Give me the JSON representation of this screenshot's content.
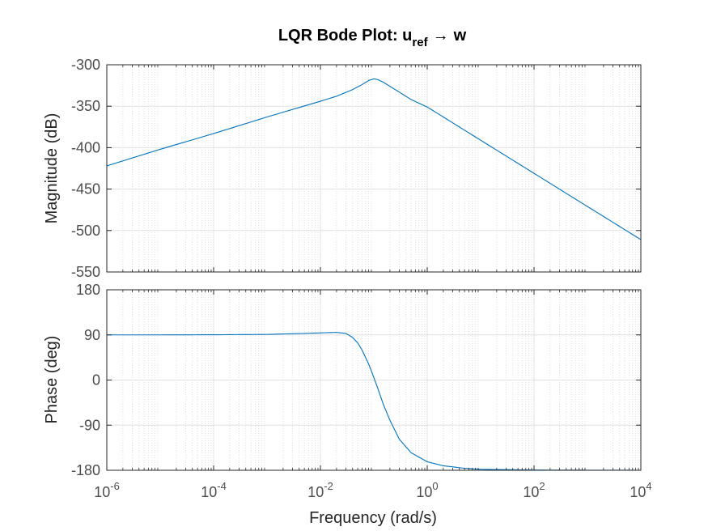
{
  "chart_data": {
    "type": "line",
    "title": {
      "prefix": "LQR Bode Plot: u",
      "subscript": "ref",
      "arrow": "→",
      "suffix": "w"
    },
    "xlabel": "Frequency  (rad/s)",
    "xscale": "log",
    "xlim": [
      1e-06,
      10000
    ],
    "xticks": [
      {
        "value": 1e-06,
        "base": "10",
        "exp": "-6"
      },
      {
        "value": 0.0001,
        "base": "10",
        "exp": "-4"
      },
      {
        "value": 0.01,
        "base": "10",
        "exp": "-2"
      },
      {
        "value": 1,
        "base": "10",
        "exp": "0"
      },
      {
        "value": 100,
        "base": "10",
        "exp": "2"
      },
      {
        "value": 10000,
        "base": "10",
        "exp": "4"
      }
    ],
    "grid": "major and minor",
    "line_color": "#0072bd",
    "panels": [
      {
        "id": "magnitude",
        "ylabel": "Magnitude (dB)",
        "ylim": [
          -550,
          -300
        ],
        "yticks": [
          {
            "value": -300,
            "label": "-300"
          },
          {
            "value": -350,
            "label": "-350"
          },
          {
            "value": -400,
            "label": "-400"
          },
          {
            "value": -450,
            "label": "-450"
          },
          {
            "value": -500,
            "label": "-500"
          },
          {
            "value": -550,
            "label": "-550"
          }
        ],
        "series": [
          {
            "x": [
              1e-06,
              1e-05,
              0.0001,
              0.001,
              0.01,
              0.02,
              0.04,
              0.06,
              0.08,
              0.1,
              0.12,
              0.15,
              0.2,
              0.3,
              0.5,
              1,
              10,
              100,
              1000,
              10000
            ],
            "y": [
              -422,
              -402,
              -383,
              -363,
              -344,
              -338,
              -330,
              -324,
              -319,
              -317,
              -318,
              -321,
              -326,
              -333,
              -342,
              -351,
              -391,
              -431,
              -471,
              -511
            ]
          }
        ]
      },
      {
        "id": "phase",
        "ylabel": "Phase (deg)",
        "ylim": [
          -180,
          180
        ],
        "yticks": [
          {
            "value": 180,
            "label": "180"
          },
          {
            "value": 90,
            "label": "90"
          },
          {
            "value": 0,
            "label": "0"
          },
          {
            "value": -90,
            "label": "-90"
          },
          {
            "value": -180,
            "label": "-180"
          }
        ],
        "series": [
          {
            "x": [
              1e-06,
              1e-05,
              0.0001,
              0.001,
              0.005,
              0.01,
              0.02,
              0.03,
              0.04,
              0.05,
              0.06,
              0.07,
              0.08,
              0.09,
              0.1,
              0.12,
              0.15,
              0.2,
              0.3,
              0.5,
              1,
              2,
              5,
              10,
              100,
              1000,
              10000
            ],
            "y": [
              90,
              90,
              90.3,
              91,
              93,
              94,
              95,
              93,
              85,
              74,
              60,
              45,
              32,
              18,
              5,
              -18,
              -48,
              -80,
              -118,
              -145,
              -163,
              -171,
              -176,
              -178,
              -179.5,
              -179.8,
              -180
            ]
          }
        ]
      }
    ]
  }
}
